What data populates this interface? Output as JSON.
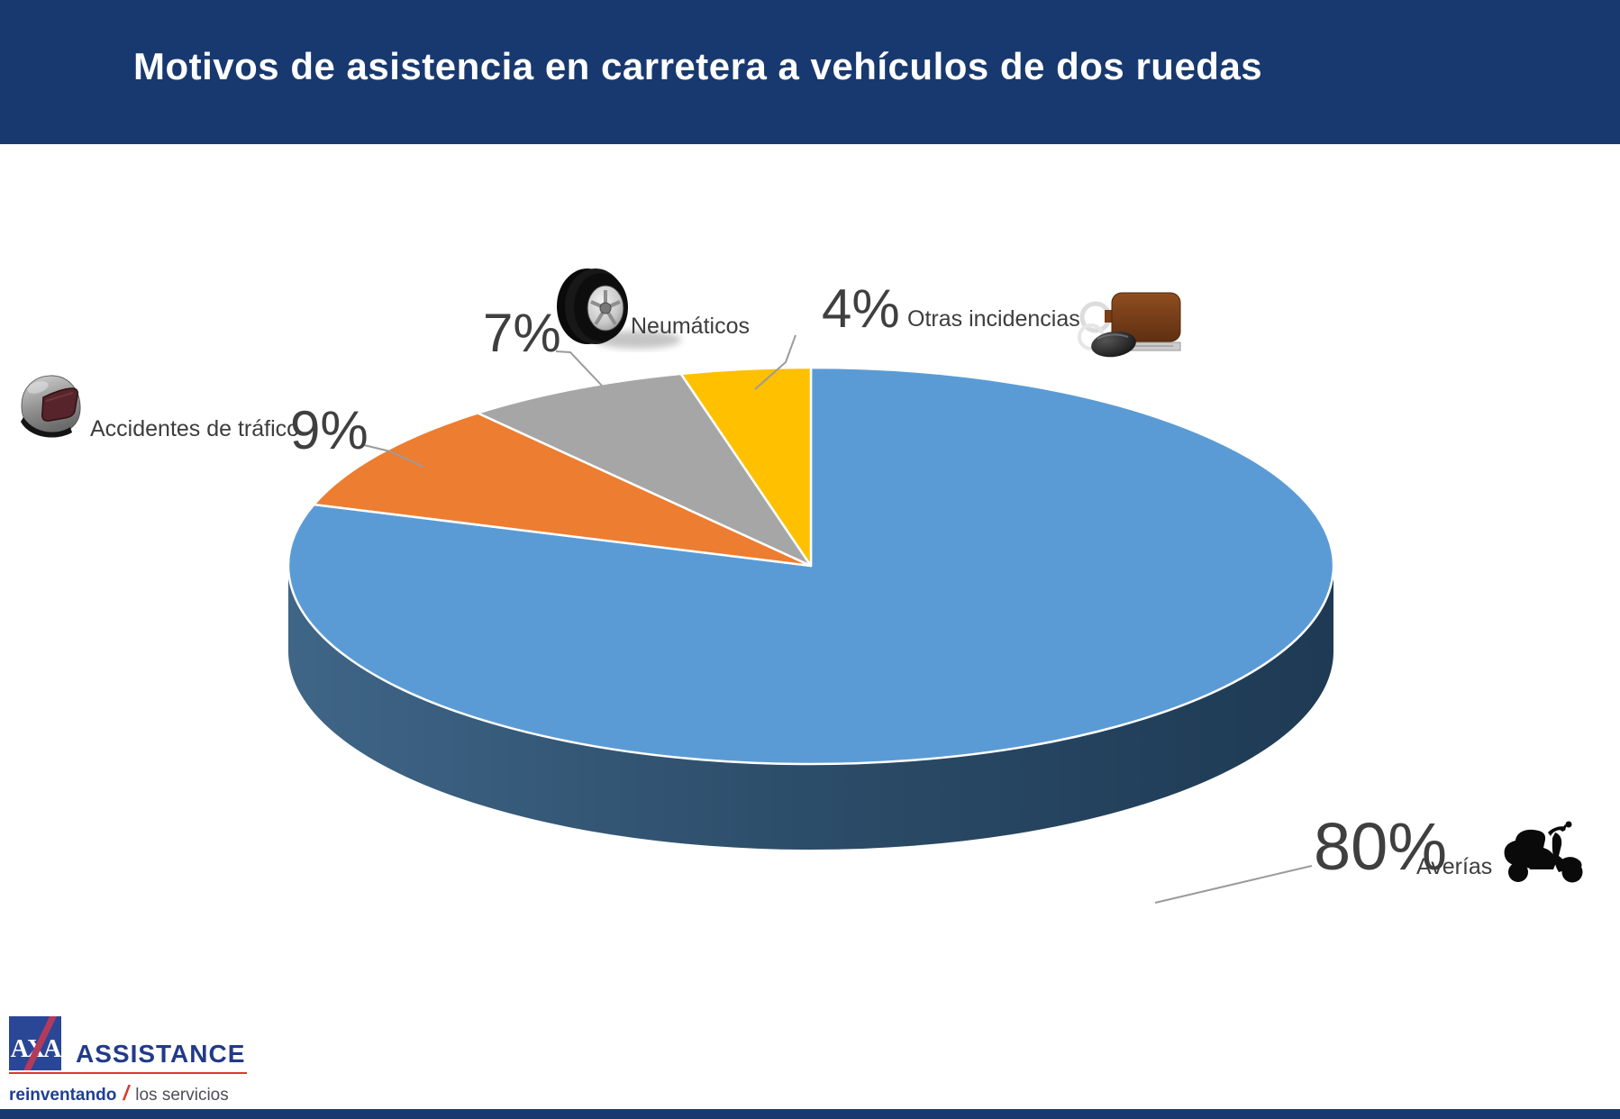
{
  "title": "Motivos de asistencia en carretera a vehículos de dos ruedas",
  "chart_data": {
    "type": "pie",
    "style": "3d",
    "title": "Motivos de asistencia en carretera a vehículos de dos ruedas",
    "unit": "%",
    "start_angle_deg": 0,
    "direction": "clockwise",
    "legend_position": "callouts-around-pie",
    "segments": [
      {
        "label": "Averías",
        "value": 80,
        "color": "#5b9bd5",
        "icon": "scooter"
      },
      {
        "label": "Accidentes de tráfico",
        "value": 9,
        "color": "#ed7d31",
        "icon": "motorcycle-helmet"
      },
      {
        "label": "Neumáticos",
        "value": 7,
        "color": "#a6a6a6",
        "icon": "tire"
      },
      {
        "label": "Otras incidencias",
        "value": 4,
        "color": "#ffc000",
        "icon": "car-key"
      }
    ],
    "side_gradient": {
      "light": "#3f6587",
      "dark": "#1e3a54"
    }
  },
  "callouts": {
    "averias": {
      "pct": "80%",
      "label": "Averías"
    },
    "accidentes": {
      "pct": "9%",
      "label": "Accidentes de tráfico"
    },
    "neumaticos": {
      "pct": "7%",
      "label": "Neumáticos"
    },
    "otras": {
      "pct": "4%",
      "label": "Otras incidencias"
    }
  },
  "footer": {
    "axa": "AXA",
    "assistance": "ASSISTANCE",
    "tagline_bold": "reinventando",
    "tagline_slash": "/",
    "tagline_rest": "los servicios"
  },
  "colors": {
    "header_bg": "#18396f",
    "bottom_bar": "#18396f",
    "title_text": "#ffffff",
    "callout_text": "#3f3f3f",
    "leader_line": "#9b9b9b",
    "axa_blue": "#2a4696",
    "axa_red": "#b23a5c",
    "logo_rule_red": "#d93a2b"
  }
}
